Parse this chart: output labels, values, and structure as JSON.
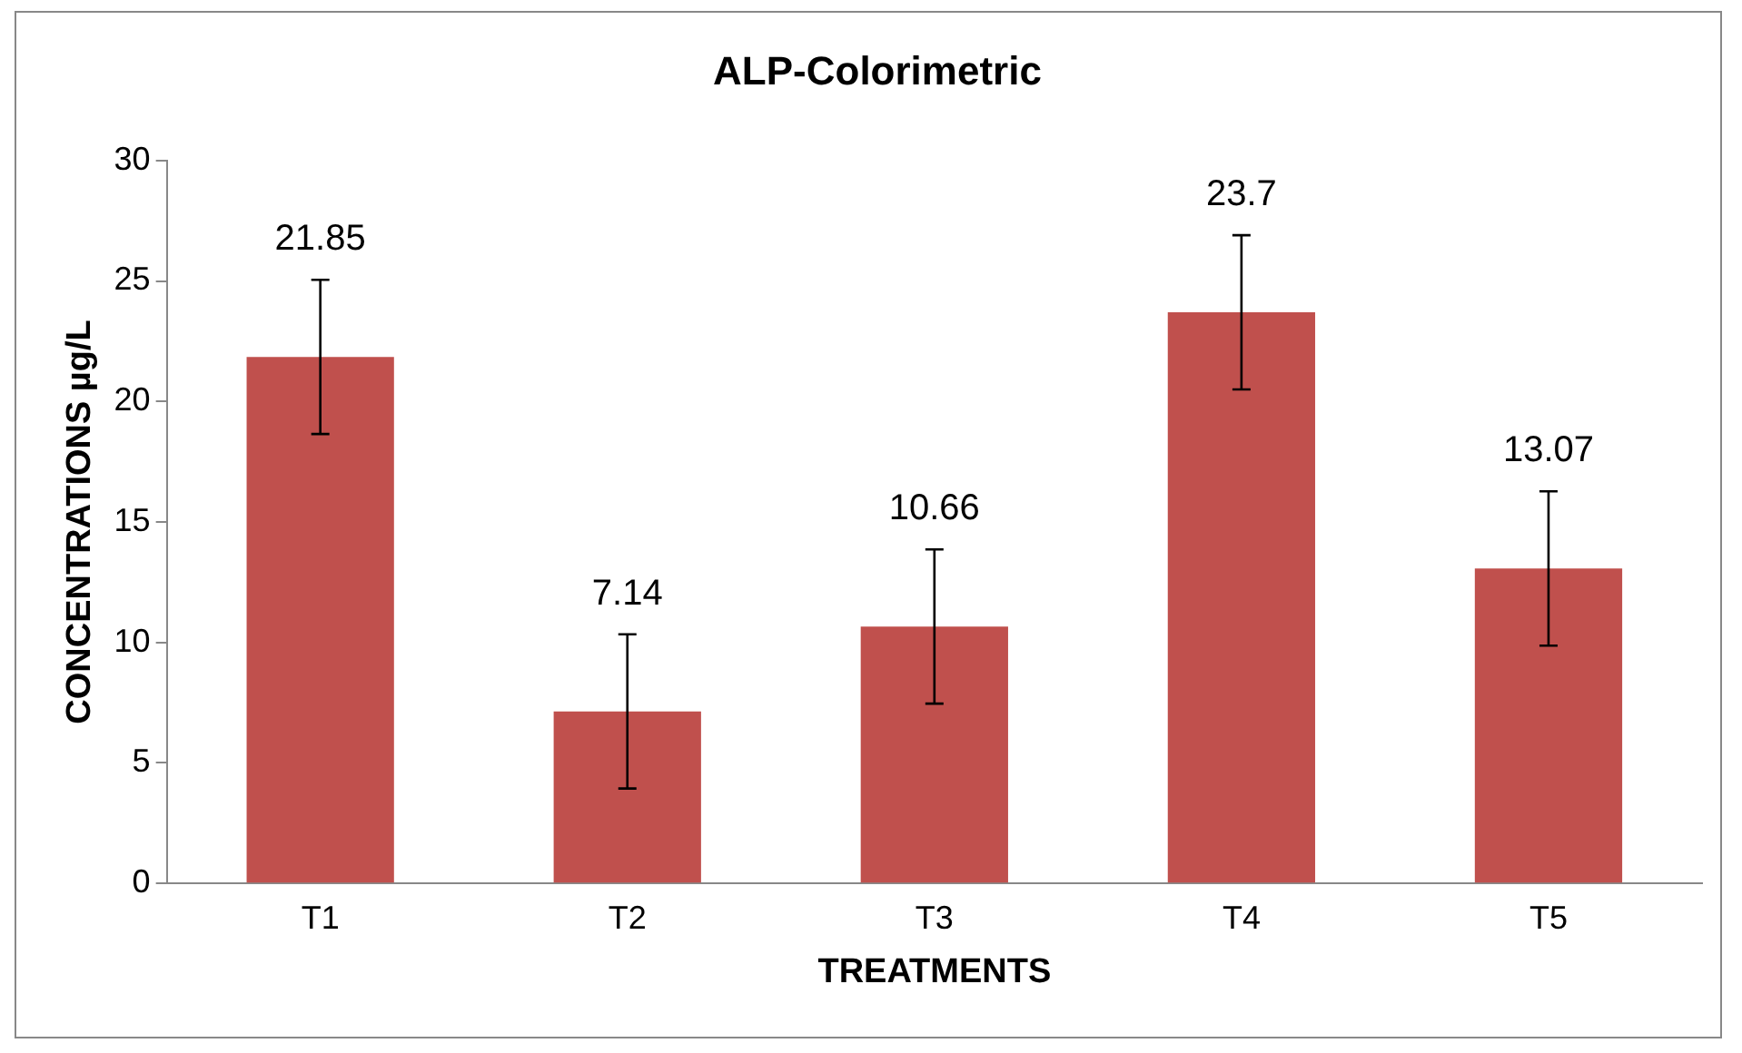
{
  "chart_data": {
    "type": "bar",
    "title": "ALP-Colorimetric",
    "xlabel": "TREATMENTS",
    "ylabel": "CONCENTRATIONS µg/L",
    "categories": [
      "T1",
      "T2",
      "T3",
      "T4",
      "T5"
    ],
    "values": [
      21.85,
      7.14,
      10.66,
      23.7,
      13.07
    ],
    "errors": [
      3.2,
      3.2,
      3.2,
      3.2,
      3.2
    ],
    "color": "#c0504d",
    "ylim": [
      0,
      30
    ],
    "yticks": [
      0,
      5,
      10,
      15,
      20,
      25,
      30
    ],
    "grid": false,
    "data_labels": true
  }
}
